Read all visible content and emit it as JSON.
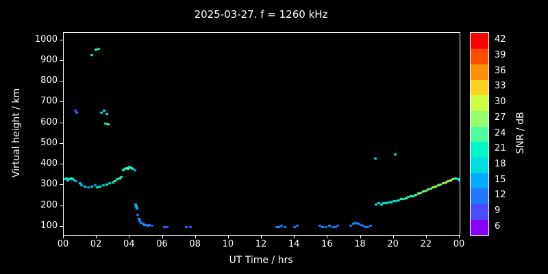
{
  "title": "2025-03-27. f = 1260 kHz",
  "axes": {
    "ylabel": "Virtual height / km",
    "xlabel": "UT Time / hrs",
    "colorbar_label": "SNR / dB",
    "y_ticks": [
      {
        "value": 100,
        "label": "100"
      },
      {
        "value": 200,
        "label": "200"
      },
      {
        "value": 300,
        "label": "300"
      },
      {
        "value": 400,
        "label": "400"
      },
      {
        "value": 500,
        "label": "500"
      },
      {
        "value": 600,
        "label": "600"
      },
      {
        "value": 700,
        "label": "700"
      },
      {
        "value": 800,
        "label": "800"
      },
      {
        "value": 900,
        "label": "900"
      },
      {
        "value": 1000,
        "label": "1000"
      }
    ],
    "x_ticks": [
      {
        "value": 0,
        "label": "00"
      },
      {
        "value": 2,
        "label": "02"
      },
      {
        "value": 4,
        "label": "04"
      },
      {
        "value": 6,
        "label": "06"
      },
      {
        "value": 8,
        "label": "08"
      },
      {
        "value": 10,
        "label": "10"
      },
      {
        "value": 12,
        "label": "12"
      },
      {
        "value": 14,
        "label": "14"
      },
      {
        "value": 16,
        "label": "16"
      },
      {
        "value": 18,
        "label": "18"
      },
      {
        "value": 20,
        "label": "20"
      },
      {
        "value": 22,
        "label": "22"
      },
      {
        "value": 24,
        "label": "00"
      }
    ]
  },
  "chart_data": {
    "type": "scatter",
    "title": "2025-03-27. f = 1260 kHz",
    "xlabel": "UT Time / hrs",
    "ylabel": "Virtual height / km",
    "xlim": [
      0,
      24
    ],
    "ylim": [
      60,
      1035
    ],
    "grid": false,
    "colorbar_label": "SNR / dB",
    "colorbar_levels": [
      6,
      9,
      12,
      15,
      18,
      21,
      24,
      27,
      30,
      33,
      36,
      39,
      42
    ],
    "colormap": {
      "6": "#8800ff",
      "9": "#4b4bff",
      "12": "#2277ff",
      "15": "#00aaff",
      "18": "#00dde0",
      "21": "#00f5c8",
      "24": "#4dff9e",
      "27": "#96ff6e",
      "30": "#cfff45",
      "33": "#ffd21f",
      "36": "#ff9100",
      "39": "#ff4d00",
      "42": "#ff0000"
    },
    "points": [
      [
        0.05,
        330,
        18
      ],
      [
        0.15,
        335,
        21
      ],
      [
        0.25,
        325,
        18
      ],
      [
        0.35,
        330,
        21
      ],
      [
        0.45,
        335,
        24
      ],
      [
        0.55,
        330,
        21
      ],
      [
        0.65,
        325,
        18
      ],
      [
        0.75,
        320,
        15
      ],
      [
        0.7,
        660,
        9
      ],
      [
        0.78,
        650,
        12
      ],
      [
        1.0,
        310,
        18
      ],
      [
        1.1,
        300,
        15
      ],
      [
        1.3,
        295,
        18
      ],
      [
        1.5,
        290,
        15
      ],
      [
        1.7,
        295,
        18
      ],
      [
        1.9,
        300,
        15
      ],
      [
        2.05,
        290,
        18
      ],
      [
        2.2,
        295,
        21
      ],
      [
        1.7,
        930,
        21
      ],
      [
        1.95,
        955,
        24
      ],
      [
        2.1,
        960,
        21
      ],
      [
        2.3,
        650,
        18
      ],
      [
        2.45,
        660,
        21
      ],
      [
        2.6,
        645,
        21
      ],
      [
        2.55,
        600,
        21
      ],
      [
        2.7,
        595,
        24
      ],
      [
        2.4,
        300,
        18
      ],
      [
        2.6,
        305,
        21
      ],
      [
        2.8,
        310,
        18
      ],
      [
        3.0,
        315,
        21
      ],
      [
        3.1,
        320,
        24
      ],
      [
        3.25,
        330,
        21
      ],
      [
        3.4,
        335,
        24
      ],
      [
        3.5,
        340,
        21
      ],
      [
        3.6,
        375,
        18
      ],
      [
        3.7,
        380,
        21
      ],
      [
        3.8,
        385,
        24
      ],
      [
        3.9,
        380,
        27
      ],
      [
        4.0,
        390,
        21
      ],
      [
        4.1,
        385,
        24
      ],
      [
        4.2,
        380,
        18
      ],
      [
        4.3,
        375,
        15
      ],
      [
        4.35,
        210,
        15
      ],
      [
        4.4,
        200,
        18
      ],
      [
        4.45,
        190,
        15
      ],
      [
        4.5,
        160,
        12
      ],
      [
        4.55,
        140,
        15
      ],
      [
        4.6,
        130,
        12
      ],
      [
        4.7,
        120,
        15
      ],
      [
        4.8,
        115,
        12
      ],
      [
        4.9,
        110,
        15
      ],
      [
        5.0,
        110,
        12
      ],
      [
        5.1,
        105,
        15
      ],
      [
        5.2,
        110,
        12
      ],
      [
        5.35,
        105,
        9
      ],
      [
        6.1,
        100,
        12
      ],
      [
        6.25,
        100,
        9
      ],
      [
        7.45,
        100,
        12
      ],
      [
        7.7,
        100,
        9
      ],
      [
        12.9,
        100,
        12
      ],
      [
        13.05,
        100,
        15
      ],
      [
        13.2,
        105,
        12
      ],
      [
        13.4,
        100,
        12
      ],
      [
        14.0,
        100,
        12
      ],
      [
        14.15,
        105,
        12
      ],
      [
        15.55,
        105,
        12
      ],
      [
        15.7,
        100,
        15
      ],
      [
        15.9,
        100,
        12
      ],
      [
        16.1,
        105,
        15
      ],
      [
        16.3,
        100,
        12
      ],
      [
        16.5,
        100,
        12
      ],
      [
        16.6,
        105,
        9
      ],
      [
        17.4,
        105,
        12
      ],
      [
        17.55,
        115,
        15
      ],
      [
        17.7,
        120,
        12
      ],
      [
        17.85,
        115,
        15
      ],
      [
        18.0,
        110,
        12
      ],
      [
        18.15,
        105,
        12
      ],
      [
        18.3,
        100,
        15
      ],
      [
        18.45,
        100,
        12
      ],
      [
        18.6,
        105,
        12
      ],
      [
        18.9,
        430,
        18
      ],
      [
        20.1,
        450,
        18
      ],
      [
        18.95,
        210,
        18
      ],
      [
        19.1,
        215,
        18
      ],
      [
        19.25,
        210,
        21
      ],
      [
        19.4,
        215,
        18
      ],
      [
        19.55,
        215,
        21
      ],
      [
        19.7,
        220,
        18
      ],
      [
        19.85,
        220,
        21
      ],
      [
        20.0,
        225,
        21
      ],
      [
        20.15,
        225,
        18
      ],
      [
        20.3,
        230,
        21
      ],
      [
        20.45,
        235,
        24
      ],
      [
        20.6,
        235,
        21
      ],
      [
        20.75,
        240,
        24
      ],
      [
        20.9,
        245,
        21
      ],
      [
        21.05,
        250,
        24
      ],
      [
        21.2,
        250,
        21
      ],
      [
        21.35,
        255,
        24
      ],
      [
        21.5,
        260,
        27
      ],
      [
        21.65,
        265,
        24
      ],
      [
        21.8,
        270,
        27
      ],
      [
        21.95,
        275,
        24
      ],
      [
        22.1,
        280,
        27
      ],
      [
        22.25,
        285,
        24
      ],
      [
        22.4,
        290,
        27
      ],
      [
        22.55,
        295,
        30
      ],
      [
        22.7,
        300,
        27
      ],
      [
        22.85,
        305,
        24
      ],
      [
        23.0,
        310,
        27
      ],
      [
        23.15,
        315,
        30
      ],
      [
        23.3,
        320,
        27
      ],
      [
        23.45,
        325,
        30
      ],
      [
        23.6,
        330,
        27
      ],
      [
        23.75,
        335,
        24
      ],
      [
        23.9,
        330,
        21
      ],
      [
        23.98,
        325,
        18
      ]
    ]
  }
}
